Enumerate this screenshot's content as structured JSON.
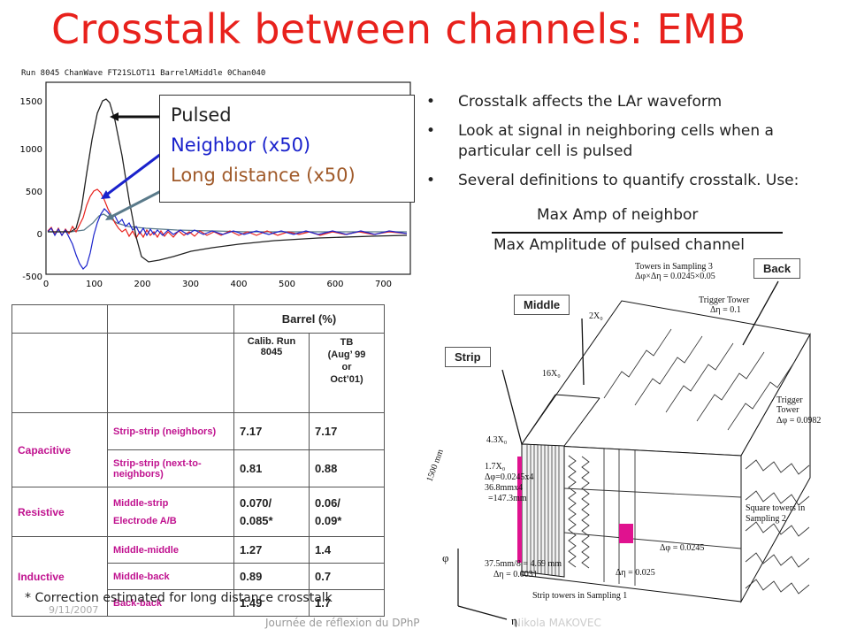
{
  "title": "Crosstalk between channels: EMB",
  "plot": {
    "header": "Run 8045   ChanWave  FT21SLOT11 BarrelAMiddle 0Chan040",
    "y_ticks": [
      "1500",
      "1000",
      "500",
      "0",
      "-500"
    ],
    "x_ticks": [
      "0",
      "100",
      "200",
      "300",
      "400",
      "500",
      "600",
      "700"
    ],
    "legend": {
      "pulsed": "Pulsed",
      "neighbor": "Neighbor (x50)",
      "long": "Long distance (x50)"
    },
    "colors": {
      "pulsed": "#222222",
      "neighbor": "#1a22cc",
      "long": "#a05a2a"
    }
  },
  "bullets": [
    "Crosstalk affects the LAr waveform",
    "Look at signal in neighboring cells when a particular cell is pulsed",
    "Several definitions to quantify crosstalk. Use:"
  ],
  "fraction": {
    "numerator": "Max Amp of neighbor",
    "denominator": "Max Amplitude of pulsed channel"
  },
  "table": {
    "header_top": "Barrel (%)",
    "col_calib": "Calib. Run 8045",
    "col_tb_1": "TB",
    "col_tb_2": "(Aug’ 99",
    "col_tb_3": "or",
    "col_tb_4": "Oct’01)",
    "rows": [
      {
        "type": "Capacitive",
        "desc": "Strip-strip (neighbors)",
        "calib": "7.17",
        "tb": "7.17"
      },
      {
        "desc": "Strip-strip (next-to-neighbors)",
        "calib": "0.81",
        "tb": "0.88"
      },
      {
        "type": "Resistive",
        "desc1": "Middle-strip",
        "desc2": "Electrode A/B",
        "calib1": "0.070/",
        "calib2": "0.085*",
        "tb1": "0.06/",
        "tb2": "0.09*"
      },
      {
        "type": "Inductive",
        "desc": "Middle-middle",
        "calib": "1.27",
        "tb": "1.4"
      },
      {
        "desc": "Middle-back",
        "calib": "0.89",
        "tb": "0.7"
      },
      {
        "desc": "Back-back",
        "calib": "1.49",
        "tb": "1.7"
      }
    ]
  },
  "footnote": "* Correction estimated for long distance crosstalk",
  "footer": {
    "date": "9/11/2007",
    "center": "Journée de réflexion du DPhP",
    "right": "Nikola MAKOVEC"
  },
  "diagram": {
    "callouts": {
      "back": "Back",
      "middle": "Middle",
      "strip": "Strip"
    },
    "labels": {
      "towers_s3_1": "Towers in Sampling 3",
      "towers_s3_2": "Δφ×Δη = 0.0245×0.05",
      "trig_top_1": "Trigger Tower",
      "trig_top_2": "Δη = 0.1",
      "x0_2": "2X₀",
      "x0_16": "16X₀",
      "x0_43": "4.3X₀",
      "x0_17": "1.7X₀",
      "dphi_strip_1": "Δφ=0.0245x4",
      "dphi_strip_2": "36.8mmx4",
      "dphi_strip_3": "=147.3mm",
      "mm1500": "1500 mm",
      "trig_right_1": "Trigger",
      "trig_right_2": "Tower",
      "trig_right_3": "Δφ = 0.0982",
      "sq_towers_1": "Square towers in",
      "sq_towers_2": "Sampling 2",
      "dphi_s2": "Δφ = 0.0245",
      "deta_s2": "Δη = 0.025",
      "strip_size_1": "37.5mm/8 = 4.69 mm",
      "strip_size_2": "Δη = 0.0031",
      "strip_towers": "Strip towers in Sampling 1",
      "phi": "φ",
      "eta": "η"
    }
  }
}
